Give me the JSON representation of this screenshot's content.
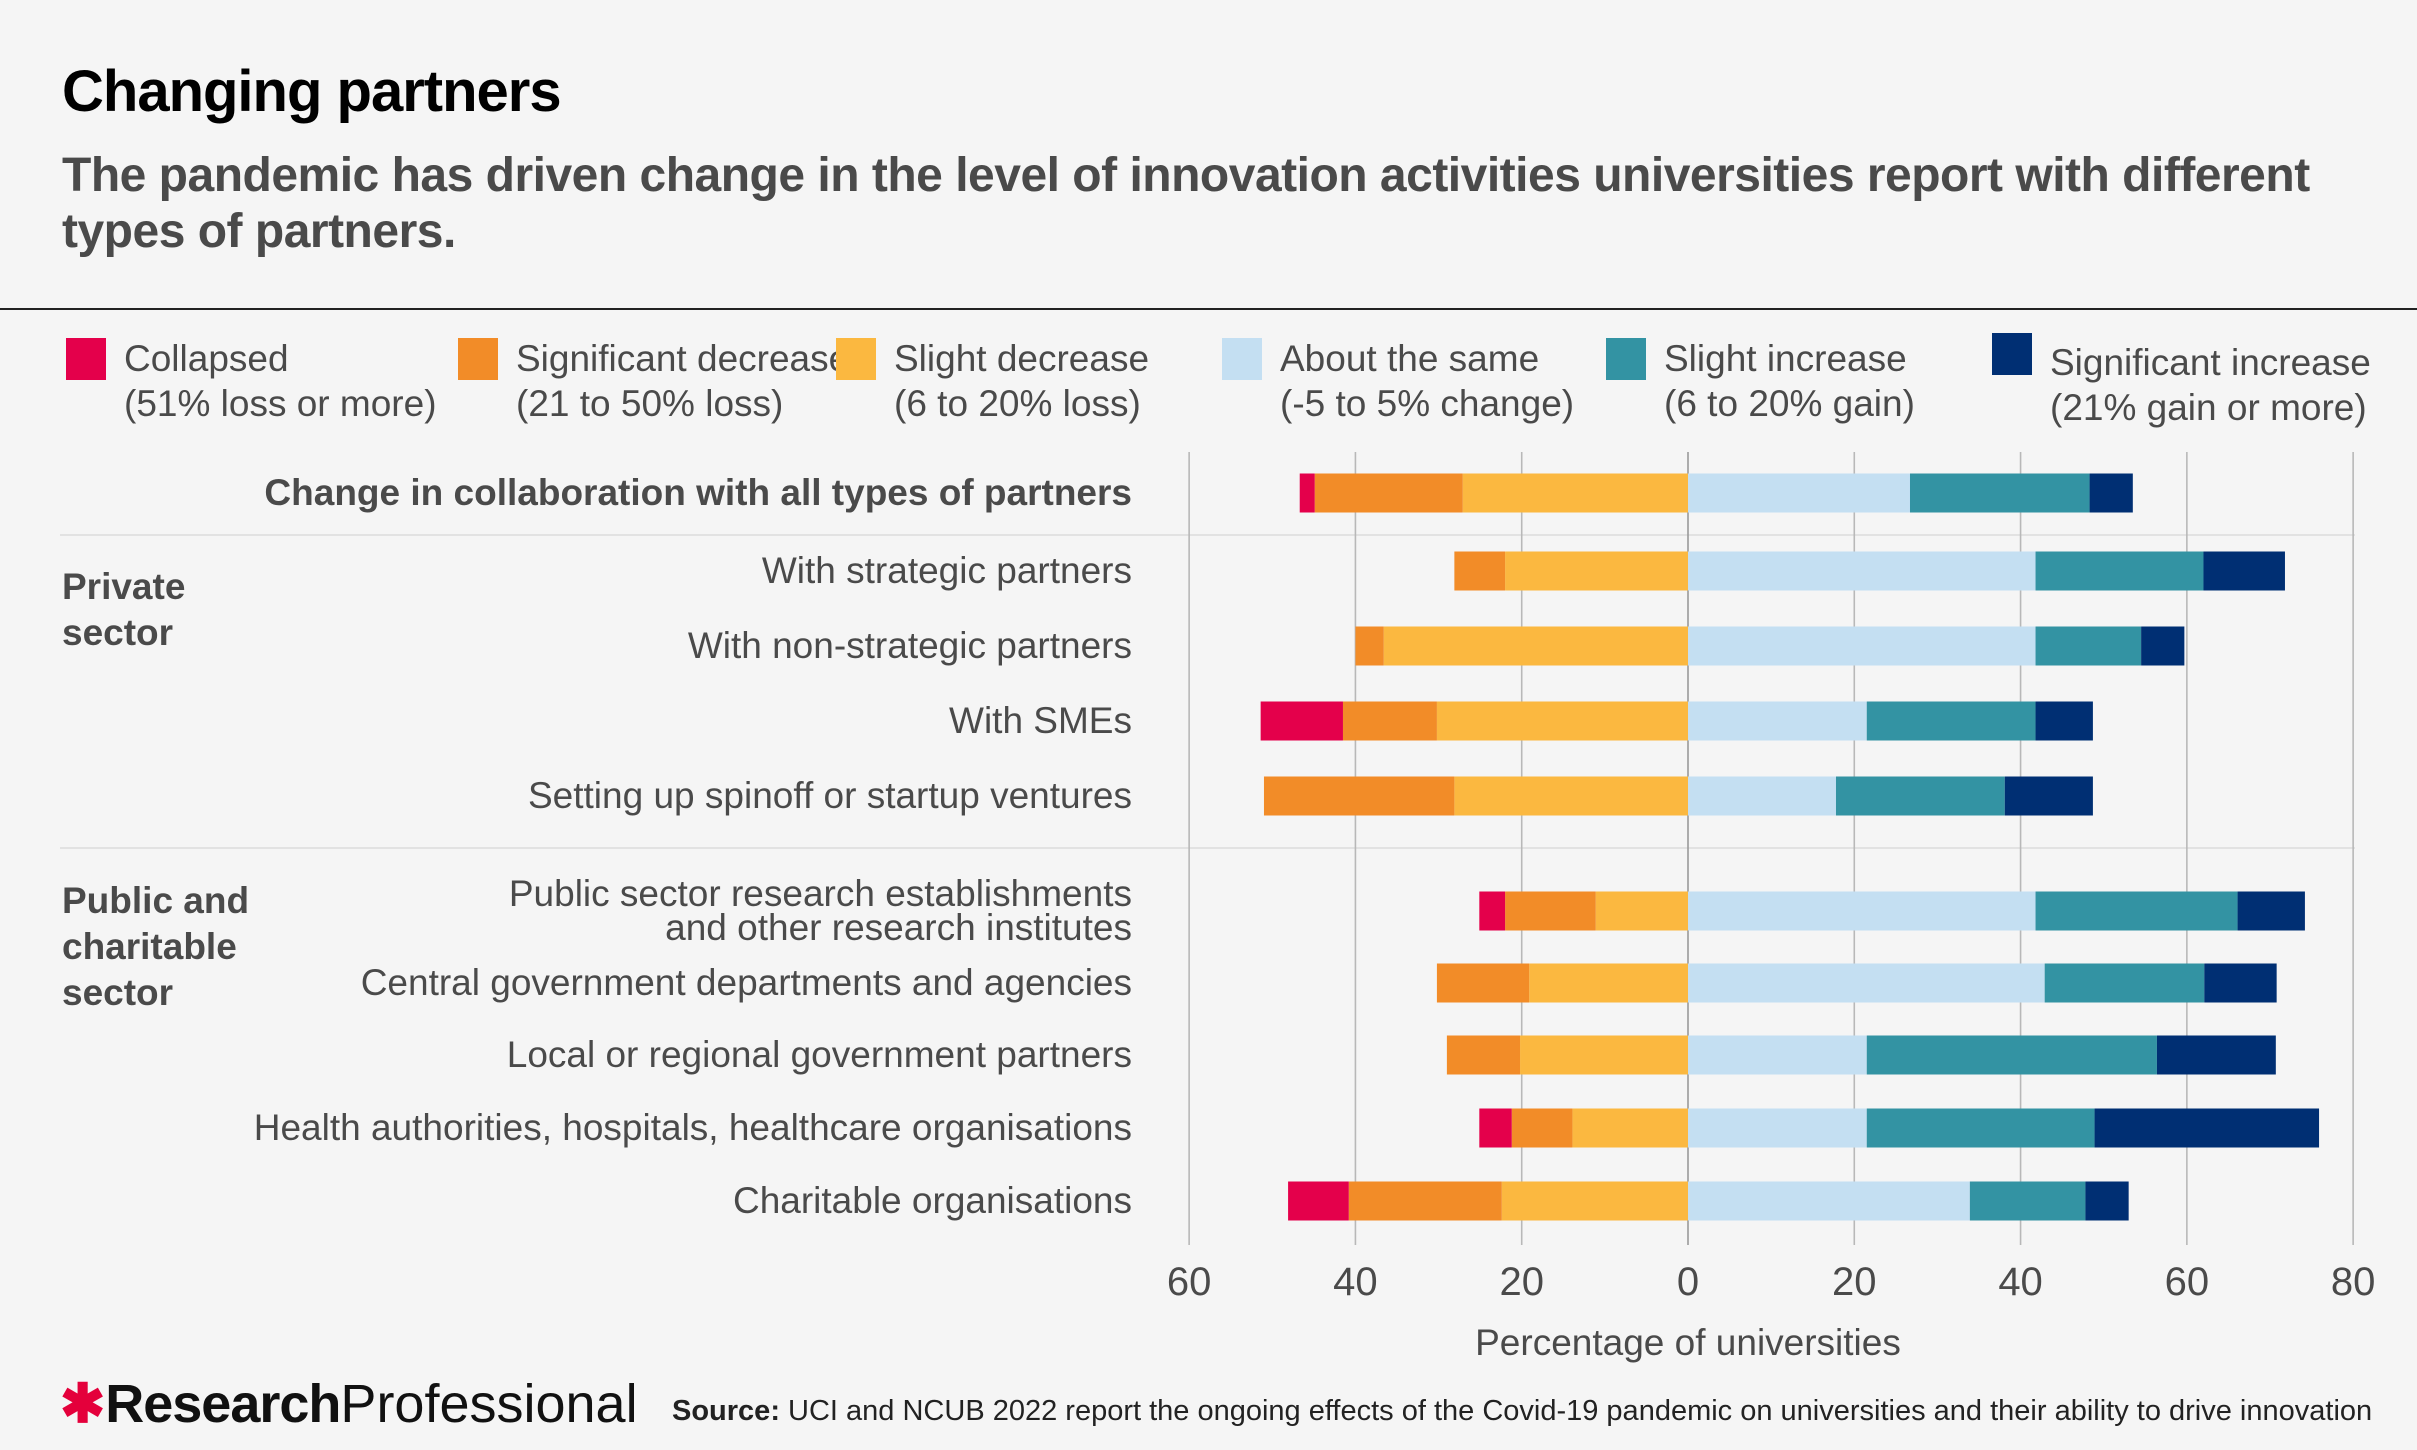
{
  "header": {
    "title": "Changing partners",
    "subtitle": "The pandemic has driven change in the level of innovation activities universities report with different types of partners."
  },
  "legend": [
    {
      "label": "Collapsed",
      "sub": "(51% loss or more)",
      "color": "#e4004b"
    },
    {
      "label": "Significant decrease",
      "sub": "(21 to 50% loss)",
      "color": "#f28c28"
    },
    {
      "label": "Slight decrease",
      "sub": "(6 to 20% loss)",
      "color": "#fbb840"
    },
    {
      "label": "About the same",
      "sub": "(-5 to 5% change)",
      "color": "#c4dff2"
    },
    {
      "label": "Slight increase",
      "sub": "(6 to 20% gain)",
      "color": "#3393a3"
    },
    {
      "label": "Significant increase",
      "sub": "(21% gain or more)",
      "color": "#002f73"
    }
  ],
  "groups": [
    {
      "label": "Private\nsector"
    },
    {
      "label": "Public and\ncharitable\nsector"
    }
  ],
  "footer": {
    "brand_bold": "Research",
    "brand_light": "Professional",
    "source_label": "Source:",
    "source_text": "UCI and NCUB 2022 report the ongoing effects of the Covid-19 pandemic on universities and their ability to drive innovation"
  },
  "chart_data": {
    "type": "bar",
    "orientation": "horizontal-diverging-stacked",
    "title": "Changing partners",
    "xlabel": "Percentage of universities",
    "ylabel": "",
    "xlim": [
      -60,
      80
    ],
    "xticks": [
      60,
      40,
      20,
      0,
      20,
      40,
      60,
      80
    ],
    "grid": true,
    "legend_position": "top",
    "categories": [
      "Change in collaboration with all types of partners",
      "With strategic partners",
      "With non-strategic partners",
      "With SMEs",
      "Setting up spinoff or startup ventures",
      "Public sector research establishments\nand other research institutes",
      "Central government departments and agencies",
      "Local or regional government partners",
      "Health authorities, hospitals, healthcare organisations",
      "Charitable organisations"
    ],
    "series": [
      {
        "name": "Collapsed",
        "side": "negative",
        "values": [
          1.8,
          0,
          0,
          9.9,
          0,
          3.1,
          0,
          0,
          3.9,
          7.3
        ]
      },
      {
        "name": "Significant decrease",
        "side": "negative",
        "values": [
          17.8,
          6.1,
          3.4,
          11.3,
          22.9,
          10.9,
          11.1,
          8.8,
          7.3,
          18.4
        ]
      },
      {
        "name": "Slight decrease",
        "side": "negative",
        "values": [
          27.1,
          22.0,
          36.6,
          30.2,
          28.1,
          11.1,
          19.1,
          20.2,
          13.9,
          22.4
        ]
      },
      {
        "name": "About the same",
        "side": "positive",
        "values": [
          26.7,
          41.8,
          41.8,
          21.5,
          17.8,
          41.8,
          42.9,
          21.5,
          21.5,
          33.9
        ]
      },
      {
        "name": "Slight increase",
        "side": "positive",
        "values": [
          21.6,
          20.2,
          12.7,
          20.3,
          20.3,
          24.3,
          19.2,
          34.9,
          27.4,
          13.9
        ]
      },
      {
        "name": "Significant increase",
        "side": "positive",
        "values": [
          5.2,
          9.8,
          5.2,
          6.9,
          10.6,
          8.1,
          8.7,
          14.3,
          27.0,
          5.2
        ]
      }
    ]
  }
}
